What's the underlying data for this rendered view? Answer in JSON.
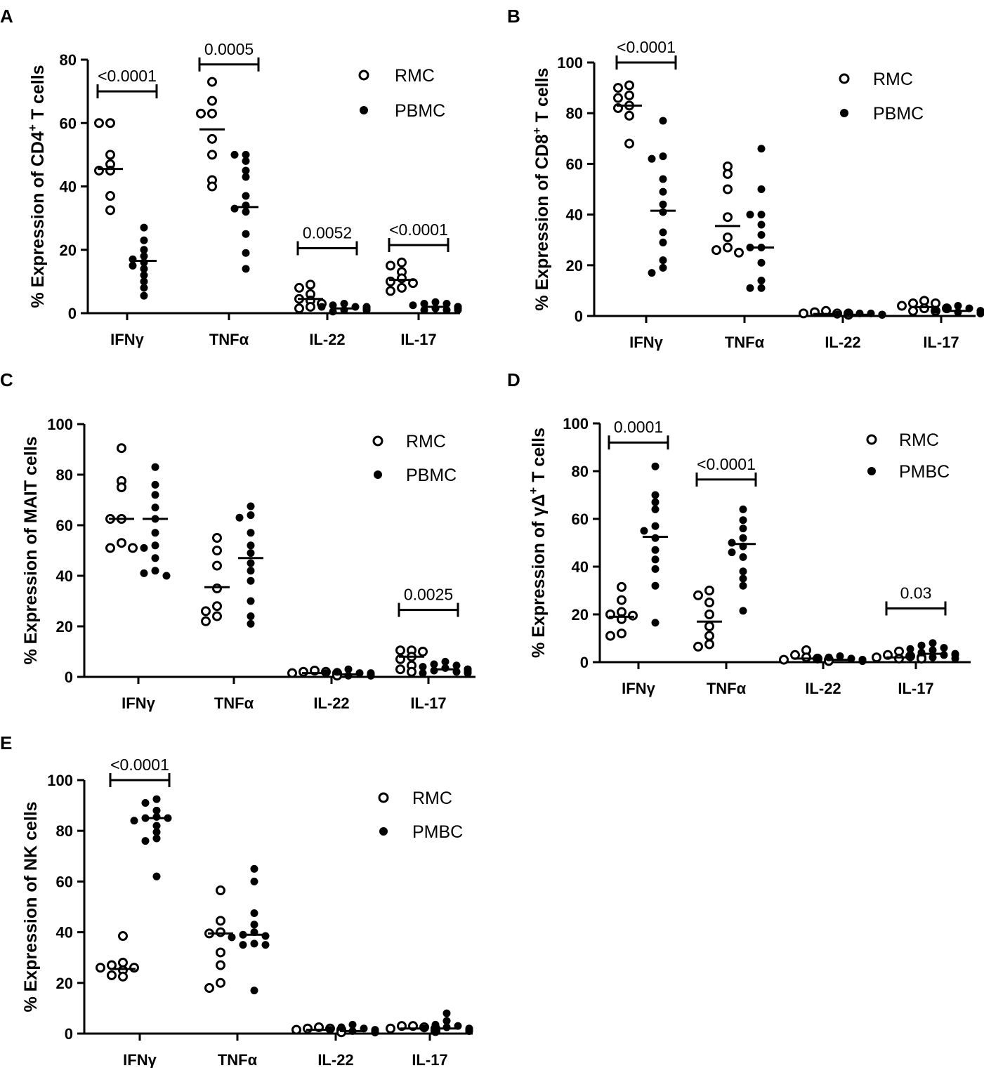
{
  "figure": {
    "marker_colors": {
      "rmc": "#000000",
      "pbmc": "#000000"
    },
    "panels_order": [
      "A",
      "B",
      "C",
      "D",
      "E"
    ]
  },
  "chart_data": [
    {
      "panel": "A",
      "type": "scatter",
      "ylabel": "% Expression of CD4",
      "ylabel_sup": "+",
      "ylabel_tail": " T cells",
      "ylim": [
        0,
        80
      ],
      "yticks": [
        0,
        20,
        40,
        60,
        80
      ],
      "categories": [
        "IFNγ",
        "TNFα",
        "IL-22",
        "IL-17"
      ],
      "legend": [
        "RMC",
        "PBMC"
      ],
      "series": [
        {
          "name": "RMC",
          "values": [
            [
              60,
              60,
              50,
              47,
              45,
              45,
              37,
              32.5
            ],
            [
              73,
              67,
              63,
              63,
              55,
              50,
              42,
              40
            ],
            [
              9,
              8,
              6,
              4.5,
              4,
              3,
              2,
              1.5
            ],
            [
              16,
              15,
              13,
              11,
              10,
              9.5,
              8,
              7
            ]
          ]
        },
        {
          "name": "PBMC",
          "values": [
            [
              27,
              23,
              20,
              18,
              17,
              16,
              15,
              14,
              12,
              10,
              8,
              5.5
            ],
            [
              50,
              50,
              48,
              45,
              43,
              37,
              34,
              33,
              32,
              25,
              19,
              14
            ],
            [
              3,
              2.5,
              2,
              2,
              2,
              1.5,
              1.5,
              1.5,
              1,
              1,
              1,
              0.5
            ],
            [
              3.5,
              3,
              3,
              2.5,
              2,
              2,
              2,
              1.5,
              1.5,
              1,
              1,
              1
            ]
          ]
        }
      ],
      "medians": {
        "RMC": [
          45.5,
          58,
          4.5,
          10.5
        ],
        "PBMC": [
          16.5,
          33.5,
          1.5,
          2
        ]
      },
      "pvalues": [
        {
          "text": "<0.0001",
          "category": 0,
          "y": 70
        },
        {
          "text": "0.0005",
          "category": 1,
          "y": 78.5
        },
        {
          "text": "0.0052",
          "category": 2,
          "y": 20.5
        },
        {
          "text": "<0.0001",
          "category": 3,
          "y": 21.5
        }
      ]
    },
    {
      "panel": "B",
      "type": "scatter",
      "ylabel": "% Expression of CD8",
      "ylabel_sup": "+",
      "ylabel_tail": " T cells",
      "ylim": [
        0,
        100
      ],
      "yticks": [
        0,
        20,
        40,
        60,
        80,
        100
      ],
      "categories": [
        "IFNγ",
        "TNFα",
        "IL-22",
        "IL-17"
      ],
      "legend": [
        "RMC",
        "PBMC"
      ],
      "series": [
        {
          "name": "RMC",
          "values": [
            [
              91,
              90,
              87,
              86,
              83,
              82,
              79,
              68
            ],
            [
              59,
              56,
              50,
              39,
              31,
              27,
              26,
              25
            ],
            [
              2,
              1.5,
              1,
              1,
              1,
              0.5,
              0.5,
              0.5
            ],
            [
              6,
              5,
              5,
              4,
              3,
              3,
              2,
              2
            ]
          ]
        },
        {
          "name": "PBMC",
          "values": [
            [
              77,
              63,
              62,
              54,
              49,
              44,
              41,
              33,
              29,
              22,
              19,
              17
            ],
            [
              66,
              50,
              40,
              40,
              36,
              32,
              27,
              27,
              21,
              14,
              11,
              11
            ],
            [
              1,
              1,
              1,
              0.5,
              0.5,
              0.5,
              0.5,
              0.5,
              0.5,
              0.5,
              0.5,
              0.5
            ],
            [
              4,
              3,
              3,
              2.5,
              2,
              2,
              2,
              1.5,
              1.5,
              1,
              1,
              1
            ]
          ]
        }
      ],
      "medians": {
        "RMC": [
          83,
          35.5,
          0.8,
          3.5
        ],
        "PBMC": [
          41.5,
          27,
          0.5,
          2
        ]
      },
      "pvalues": [
        {
          "text": "<0.0001",
          "category": 0,
          "y": 100
        }
      ]
    },
    {
      "panel": "C",
      "type": "scatter",
      "ylabel": "% Expression of MAIT cells",
      "ylabel_sup": "",
      "ylabel_tail": "",
      "ylim": [
        0,
        100
      ],
      "yticks": [
        0,
        20,
        40,
        60,
        80,
        100
      ],
      "categories": [
        "IFNγ",
        "TNFα",
        "IL-22",
        "IL-17"
      ],
      "legend": [
        "RMC",
        "PBMC"
      ],
      "series": [
        {
          "name": "RMC",
          "values": [
            [
              90.5,
              77.5,
              75,
              62.5,
              62.5,
              53,
              51,
              51
            ],
            [
              55,
              50,
              44,
              35,
              28,
              26,
              24,
              22
            ],
            [
              2.5,
              2,
              2,
              1.5,
              1.5,
              1,
              1,
              0.5
            ],
            [
              10.5,
              10.5,
              10,
              8,
              7,
              4.5,
              3,
              2
            ]
          ]
        },
        {
          "name": "PBMC",
          "values": [
            [
              83,
              76,
              72,
              67,
              62.5,
              57,
              52,
              51,
              47,
              42,
              41,
              40
            ],
            [
              67.5,
              64,
              63,
              57,
              52,
              49,
              45,
              42,
              38,
              30,
              24,
              21
            ],
            [
              3,
              2,
              1.5,
              1.5,
              1.5,
              1,
              1,
              1,
              1,
              0.5,
              0.5,
              0.5
            ],
            [
              6,
              5,
              4.5,
              4,
              3.5,
              3,
              3,
              2.5,
              2,
              2,
              1.5,
              1.5
            ]
          ]
        }
      ],
      "medians": {
        "RMC": [
          62.5,
          35.5,
          1.5,
          8
        ],
        "PBMC": [
          62.5,
          47,
          1,
          3
        ]
      },
      "pvalues": [
        {
          "text": "0.0025",
          "category": 3,
          "y": 26.5
        }
      ]
    },
    {
      "panel": "D",
      "type": "scatter",
      "ylabel": "% Expression of γΔ",
      "ylabel_sup": "+",
      "ylabel_tail": " T cells",
      "ylim": [
        0,
        100
      ],
      "yticks": [
        0,
        20,
        40,
        60,
        80,
        100
      ],
      "categories": [
        "IFNγ",
        "TNFα",
        "IL-22",
        "IL-17"
      ],
      "legend": [
        "RMC",
        "PMBC"
      ],
      "series": [
        {
          "name": "RMC",
          "values": [
            [
              31.5,
              26,
              21,
              20,
              19.5,
              18,
              12,
              11
            ],
            [
              30,
              28,
              25,
              20,
              15,
              11,
              7.5,
              6.5
            ],
            [
              5,
              3,
              2,
              1.5,
              1,
              1,
              0.5,
              0.5
            ],
            [
              4.5,
              3,
              2.5,
              2,
              2,
              1.5,
              1.5,
              1.5
            ]
          ]
        },
        {
          "name": "PMBC",
          "values": [
            [
              82,
              70,
              67,
              64,
              57,
              55,
              52,
              47,
              43,
              39,
              32,
              16.5
            ],
            [
              64,
              59.5,
              56,
              52,
              50,
              48.5,
              46,
              44,
              38,
              35,
              32,
              21.5
            ],
            [
              2.5,
              2,
              1.5,
              1.5,
              1,
              1,
              1,
              0.5,
              0.5,
              0.5,
              0.5,
              0.5
            ],
            [
              8,
              7,
              6,
              5.5,
              5,
              4,
              3.5,
              3,
              3,
              2.5,
              2,
              1.5
            ]
          ]
        }
      ],
      "medians": {
        "RMC": [
          19,
          17,
          1.5,
          2
        ],
        "PMBC": [
          52.5,
          49.5,
          1,
          3.5
        ]
      },
      "pvalues": [
        {
          "text": "0.0001",
          "category": 0,
          "y": 92
        },
        {
          "text": "<0.0001",
          "category": 1,
          "y": 76.5
        },
        {
          "text": "0.03",
          "category": 3,
          "y": 22.5
        }
      ]
    },
    {
      "panel": "E",
      "type": "scatter",
      "ylabel": "% Expression of NK cells",
      "ylabel_sup": "",
      "ylabel_tail": "",
      "ylim": [
        0,
        100
      ],
      "yticks": [
        0,
        20,
        40,
        60,
        80,
        100
      ],
      "categories": [
        "IFNγ",
        "TNFα",
        "IL-22",
        "IL-17"
      ],
      "legend": [
        "RMC",
        "PMBC"
      ],
      "series": [
        {
          "name": "RMC",
          "values": [
            [
              38.5,
              28,
              27,
              26,
              26,
              25,
              23,
              22.5
            ],
            [
              56.5,
              44.5,
              40,
              39.5,
              32,
              27,
              20,
              18
            ],
            [
              2.5,
              2,
              2,
              1.5,
              1.5,
              1,
              1,
              0.5
            ],
            [
              3,
              3,
              2.5,
              2,
              2,
              1.5,
              1.5,
              1
            ]
          ]
        },
        {
          "name": "PMBC",
          "values": [
            [
              92.5,
              91,
              88,
              85.5,
              85,
              85,
              84,
              82,
              79.5,
              77,
              76,
              62
            ],
            [
              65,
              60,
              47.5,
              43,
              40,
              39,
              38.5,
              38,
              35.5,
              35,
              35,
              17
            ],
            [
              3.5,
              2.5,
              2,
              1.5,
              1.5,
              1,
              1,
              1,
              0.5,
              0.5,
              0.5,
              0.5
            ],
            [
              8,
              5,
              3.5,
              3,
              2.5,
              2,
              2,
              1.5,
              1.5,
              1,
              1,
              1
            ]
          ]
        }
      ],
      "medians": {
        "RMC": [
          25.5,
          39.5,
          1.5,
          2
        ],
        "PMBC": [
          85,
          39,
          1,
          2
        ]
      },
      "pvalues": [
        {
          "text": "<0.0001",
          "category": 0,
          "y": 100
        }
      ]
    }
  ]
}
